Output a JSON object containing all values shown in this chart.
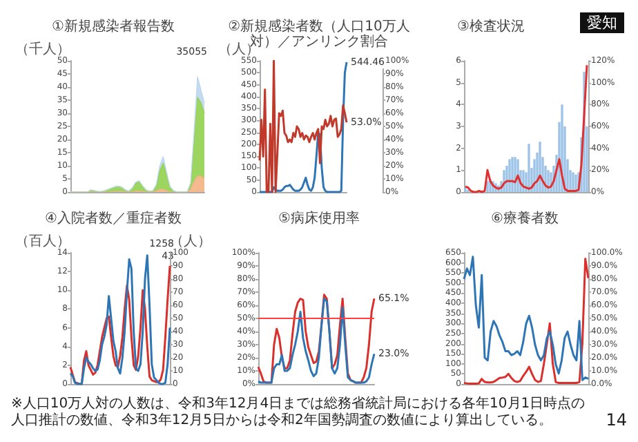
{
  "chart_data": [
    {
      "type": "area",
      "title": "①新規感染者報告数",
      "ylabel": "（千人）",
      "stacked": true,
      "categories": [
        null,
        null,
        null,
        null,
        null,
        null,
        null,
        null,
        null,
        null,
        null,
        null,
        null,
        null,
        null,
        null,
        null,
        null,
        null,
        null,
        null,
        null,
        null,
        null,
        null,
        null,
        null,
        null,
        null,
        null,
        null,
        null,
        null,
        null,
        null,
        null,
        null,
        null,
        null,
        null
      ],
      "ylim": [
        0,
        50
      ],
      "yticks": [
        0,
        5,
        10,
        15,
        20,
        25,
        30,
        35,
        40,
        45,
        50
      ],
      "annotations": [
        "35055"
      ],
      "series": [
        {
          "color": "#f4b183",
          "values": [
            0,
            0,
            0,
            0,
            0,
            0,
            0,
            0,
            0,
            0,
            0,
            0,
            0,
            0.2,
            0.2,
            0.2,
            0,
            0,
            0,
            0.3,
            0.3,
            0.2,
            0,
            0,
            0,
            0.3,
            1,
            1,
            0.5,
            0,
            0,
            0,
            0,
            0,
            0,
            1,
            4,
            6,
            6,
            5
          ]
        },
        {
          "color": "#92d050",
          "values": [
            0,
            0,
            0,
            0,
            0,
            0,
            0.8,
            0.5,
            0.2,
            0.2,
            0.5,
            1,
            1.5,
            1.8,
            2,
            1.6,
            0.8,
            0.3,
            1.5,
            3,
            3.5,
            2,
            0.8,
            0.3,
            0.5,
            2,
            7,
            10,
            6,
            2,
            0.5,
            0,
            0,
            0,
            0,
            2,
            15,
            30,
            28,
            25
          ]
        },
        {
          "color": "#bdd7ee",
          "values": [
            0,
            0,
            0,
            0,
            0,
            0,
            0,
            0,
            0,
            0,
            0,
            0,
            0,
            0,
            0,
            0,
            0,
            0,
            0,
            0.5,
            0.5,
            0.2,
            0,
            0,
            0,
            0.5,
            2,
            2.5,
            1,
            0,
            0,
            0,
            0,
            0,
            0,
            0.5,
            4,
            8,
            5,
            4
          ]
        }
      ]
    },
    {
      "type": "line",
      "title": "②新規感染者数（人口10万人対）／アンリンク割合",
      "ylabel": "（人）",
      "categories": [
        null,
        null,
        null,
        null,
        null,
        null,
        null,
        null,
        null,
        null,
        null,
        null,
        null,
        null,
        null,
        null,
        null,
        null,
        null,
        null,
        null,
        null,
        null,
        null,
        null,
        null,
        null,
        null,
        null,
        null,
        null,
        null,
        null,
        null,
        null,
        null,
        null,
        null,
        null,
        null,
        null,
        null,
        null,
        null,
        null,
        null,
        null,
        null,
        null,
        null
      ],
      "ylim": [
        0,
        550
      ],
      "yticks": [
        0,
        50,
        100,
        150,
        200,
        250,
        300,
        350,
        400,
        450,
        500,
        550
      ],
      "y2lim": [
        0,
        100
      ],
      "y2ticks": [
        {
          "value": 0,
          "label": "0%"
        },
        {
          "value": 10,
          "label": "10%"
        },
        {
          "value": 20,
          "label": "20%"
        },
        {
          "value": 30,
          "label": "30%"
        },
        {
          "value": 40,
          "label": "40%"
        },
        {
          "value": 50,
          "label": "50%"
        },
        {
          "value": 60,
          "label": "60%"
        },
        {
          "value": 70,
          "label": "70%"
        },
        {
          "value": 80,
          "label": "80%"
        },
        {
          "value": 90,
          "label": "90%"
        },
        {
          "value": 100,
          "label": "100%"
        }
      ],
      "series": [
        {
          "color": "#2e75b6",
          "values": [
            0,
            0,
            0,
            0,
            0,
            0,
            0,
            0,
            20,
            10,
            5,
            5,
            5,
            10,
            20,
            25,
            25,
            30,
            20,
            10,
            5,
            5,
            5,
            10,
            20,
            40,
            60,
            30,
            10,
            5,
            20,
            60,
            150,
            250,
            240,
            100,
            20,
            5,
            0,
            0,
            0,
            0,
            0,
            0,
            0,
            0,
            5,
            300,
            500,
            544.46
          ],
          "value_labels": [
            null,
            null,
            null,
            null,
            null,
            null,
            null,
            null,
            null,
            null,
            null,
            null,
            null,
            null,
            null,
            null,
            null,
            null,
            null,
            null,
            null,
            null,
            null,
            null,
            null,
            null,
            null,
            null,
            null,
            null,
            null,
            null,
            null,
            null,
            null,
            null,
            null,
            null,
            null,
            null,
            null,
            null,
            null,
            null,
            null,
            null,
            null,
            null,
            null,
            "544.46"
          ]
        },
        {
          "color": "#c0392b",
          "axis": "y2",
          "values": [
            24,
            55,
            27,
            78,
            0,
            0,
            52,
            0,
            100,
            0,
            30,
            60,
            58,
            62,
            45,
            43,
            38,
            40,
            38,
            45,
            42,
            50,
            48,
            42,
            45,
            40,
            43,
            42,
            38,
            42,
            45,
            40,
            45,
            48,
            22,
            50,
            48,
            55,
            50,
            52,
            58,
            50,
            55,
            56,
            42,
            44,
            48,
            66,
            60,
            53
          ],
          "value_labels": [
            null,
            null,
            null,
            null,
            null,
            null,
            null,
            null,
            null,
            null,
            null,
            null,
            null,
            null,
            null,
            null,
            null,
            null,
            null,
            null,
            null,
            null,
            null,
            null,
            null,
            null,
            null,
            null,
            null,
            null,
            null,
            null,
            null,
            null,
            null,
            null,
            null,
            null,
            null,
            null,
            null,
            null,
            null,
            null,
            null,
            null,
            null,
            null,
            null,
            "53.0%"
          ]
        }
      ]
    },
    {
      "type": "bar",
      "title": "③検査状況",
      "annotations": [
        "愛知"
      ],
      "categories": [
        null,
        null,
        null,
        null,
        null,
        null,
        null,
        null,
        null,
        null,
        null,
        null,
        null,
        null,
        null,
        null,
        null,
        null,
        null,
        null,
        null,
        null,
        null,
        null,
        null,
        null,
        null,
        null,
        null,
        null,
        null,
        null,
        null,
        null,
        null,
        null,
        null,
        null,
        null,
        null,
        null,
        null,
        null,
        null,
        null
      ],
      "ylim": [
        0,
        6
      ],
      "yticks": [
        0,
        1,
        2,
        3,
        4,
        5,
        6
      ],
      "y2lim": [
        0,
        120
      ],
      "y2ticks": [
        {
          "value": 0,
          "label": "0%"
        },
        {
          "value": 20,
          "label": "20%"
        },
        {
          "value": 40,
          "label": "40%"
        },
        {
          "value": 60,
          "label": "60%"
        },
        {
          "value": 80,
          "label": "80%"
        },
        {
          "value": 100,
          "label": "100%"
        },
        {
          "value": 120,
          "label": "120%"
        }
      ],
      "series": [
        {
          "color": "#9dc3e6",
          "values": [
            0.2,
            0.1,
            0,
            0,
            0,
            0,
            0,
            0,
            0.5,
            0.6,
            0.5,
            0.4,
            0.3,
            0.5,
            1,
            1.2,
            1.5,
            1.6,
            1.6,
            1.5,
            1,
            1,
            0.9,
            2.2,
            1.1,
            1.5,
            1.8,
            2.3,
            1.6,
            1.2,
            1,
            0.9,
            1.2,
            1.7,
            3.2,
            4,
            3,
            1.5,
            1,
            0.9,
            0.8,
            0.9,
            2.5,
            5.5,
            3
          ]
        },
        {
          "type": "line",
          "axis": "y2",
          "color": "#e03030",
          "values": [
            5,
            4,
            1,
            0,
            0,
            1,
            0,
            1,
            20,
            10,
            6,
            4,
            3,
            4,
            8,
            10,
            10,
            10,
            9,
            15,
            8,
            5,
            4,
            3,
            4,
            8,
            10,
            15,
            10,
            6,
            4,
            5,
            10,
            20,
            30,
            15,
            3,
            1,
            1,
            1,
            1,
            2,
            25,
            70,
            116
          ]
        }
      ]
    },
    {
      "type": "line",
      "title": "④入院者数／重症者数",
      "ylabel": "（百人）",
      "y2label": "（人）",
      "annotations": [
        "1258",
        "43"
      ],
      "categories": [
        null,
        null,
        null,
        null,
        null,
        null,
        null,
        null,
        null,
        null,
        null,
        null,
        null,
        null,
        null,
        null,
        null,
        null,
        null,
        null,
        null,
        null,
        null,
        null,
        null,
        null,
        null,
        null,
        null,
        null,
        null,
        null,
        null,
        null,
        null,
        null,
        null,
        null,
        null,
        null,
        null,
        null,
        null,
        null,
        null
      ],
      "ylim": [
        0,
        14
      ],
      "yticks": [
        0,
        2,
        4,
        6,
        8,
        10,
        12,
        14
      ],
      "y2lim": [
        0,
        100
      ],
      "y2ticks": [
        0,
        10,
        20,
        30,
        40,
        50,
        60,
        70,
        80,
        90,
        100
      ],
      "series": [
        {
          "color": "#d9302c",
          "values": [
            1.8,
            1,
            0.2,
            0.1,
            0,
            0,
            2.5,
            3.5,
            2,
            1.5,
            1,
            1.2,
            2,
            3.5,
            5,
            6,
            7,
            7.2,
            5,
            3,
            2,
            1.8,
            3,
            5,
            8,
            10.5,
            9,
            5,
            2,
            1.5,
            3,
            6,
            10,
            8,
            4,
            0.8,
            0.4,
            0.3,
            0.2,
            0.2,
            0.5,
            1.5,
            5,
            9,
            12.6
          ]
        },
        {
          "color": "#2e75b6",
          "axis": "y2",
          "values": [
            8,
            6,
            1,
            0,
            0,
            0,
            12,
            20,
            17,
            15,
            12,
            10,
            11,
            18,
            30,
            36,
            45,
            67,
            50,
            33,
            25,
            12,
            8,
            20,
            40,
            70,
            95,
            88,
            40,
            12,
            10,
            15,
            40,
            80,
            98,
            60,
            15,
            5,
            3,
            1,
            0,
            0,
            1,
            15,
            43
          ]
        }
      ]
    },
    {
      "type": "line",
      "title": "⑤病床使用率",
      "categories": [
        null,
        null,
        null,
        null,
        null,
        null,
        null,
        null,
        null,
        null,
        null,
        null,
        null,
        null,
        null,
        null,
        null,
        null,
        null,
        null,
        null,
        null,
        null,
        null,
        null,
        null,
        null,
        null,
        null,
        null,
        null,
        null,
        null,
        null,
        null,
        null,
        null,
        null,
        null,
        null,
        null,
        null,
        null,
        null,
        null
      ],
      "ylim": [
        0,
        100
      ],
      "yticks": [
        {
          "value": 0,
          "label": "0%"
        },
        {
          "value": 10,
          "label": "10%"
        },
        {
          "value": 20,
          "label": "20%"
        },
        {
          "value": 30,
          "label": "30%"
        },
        {
          "value": 40,
          "label": "40%"
        },
        {
          "value": 50,
          "label": "50%"
        },
        {
          "value": 60,
          "label": "60%"
        },
        {
          "value": 70,
          "label": "70%"
        },
        {
          "value": 80,
          "label": "80%"
        },
        {
          "value": 90,
          "label": "90%"
        },
        {
          "value": 100,
          "label": "100%"
        }
      ],
      "ref_lines": [
        {
          "axis": "y",
          "value": 50,
          "color": "#ff4040"
        }
      ],
      "series": [
        {
          "color": "#d9302c",
          "values": [
            13,
            8,
            2,
            1,
            1,
            1,
            30,
            42,
            35,
            20,
            12,
            12,
            18,
            38,
            55,
            62,
            65,
            64,
            40,
            28,
            22,
            16,
            17,
            25,
            45,
            68,
            65,
            40,
            12,
            15,
            22,
            45,
            65,
            35,
            8,
            3,
            2,
            1,
            1,
            1,
            5,
            12,
            30,
            55,
            65.1
          ],
          "value_labels": [
            null,
            null,
            null,
            null,
            null,
            null,
            null,
            null,
            null,
            null,
            null,
            null,
            null,
            null,
            null,
            null,
            null,
            null,
            null,
            null,
            null,
            null,
            null,
            null,
            null,
            null,
            null,
            null,
            null,
            null,
            null,
            null,
            null,
            null,
            null,
            null,
            null,
            null,
            null,
            null,
            null,
            null,
            null,
            null,
            "65.1%"
          ]
        },
        {
          "color": "#2e75b6",
          "values": [
            2,
            1,
            1,
            1,
            1,
            1,
            12,
            15,
            15,
            22,
            10,
            10,
            12,
            22,
            30,
            40,
            55,
            35,
            25,
            18,
            10,
            6,
            8,
            20,
            45,
            65,
            63,
            40,
            12,
            8,
            12,
            30,
            58,
            30,
            5,
            3,
            2,
            1,
            1,
            1,
            1,
            2,
            5,
            15,
            23
          ],
          "value_labels": [
            null,
            null,
            null,
            null,
            null,
            null,
            null,
            null,
            null,
            null,
            null,
            null,
            null,
            null,
            null,
            null,
            null,
            null,
            null,
            null,
            null,
            null,
            null,
            null,
            null,
            null,
            null,
            null,
            null,
            null,
            null,
            null,
            null,
            null,
            null,
            null,
            null,
            null,
            null,
            null,
            null,
            null,
            null,
            null,
            "23.0%"
          ]
        }
      ]
    },
    {
      "type": "line",
      "title": "⑥療養者数",
      "annotations": [
        "※人口10万人対の人数は、令和3年12月4日までは総務省統計局における各年10月1日時点の人口推計の数値、令和3年12月5日からは令和2年国勢調査の数値により算出している。",
        "14"
      ],
      "categories": [
        null,
        null,
        null,
        null,
        null,
        null,
        null,
        null,
        null,
        null,
        null,
        null,
        null,
        null,
        null,
        null,
        null,
        null,
        null,
        null,
        null,
        null,
        null,
        null,
        null,
        null,
        null,
        null,
        null,
        null,
        null,
        null,
        null,
        null,
        null,
        null,
        null,
        null,
        null,
        null,
        null,
        null,
        null
      ],
      "ylim": [
        0,
        650
      ],
      "yticks": [
        0,
        50,
        100,
        150,
        200,
        250,
        300,
        350,
        400,
        450,
        500,
        550,
        600,
        650
      ],
      "y2lim": [
        0,
        100
      ],
      "y2ticks": [
        {
          "value": 0,
          "label": "0.0%"
        },
        {
          "value": 10,
          "label": "10.0%"
        },
        {
          "value": 20,
          "label": "20.0%"
        },
        {
          "value": 30,
          "label": "30.0%"
        },
        {
          "value": 40,
          "label": "40.0%"
        },
        {
          "value": 50,
          "label": "50.0%"
        },
        {
          "value": 60,
          "label": "60.0%"
        },
        {
          "value": 70,
          "label": "70.0%"
        },
        {
          "value": 80,
          "label": "80.0%"
        },
        {
          "value": 90,
          "label": "90.0%"
        },
        {
          "value": 100,
          "label": "100.0%"
        }
      ],
      "series": [
        {
          "color": "#d9302c",
          "values": [
            5,
            3,
            2,
            2,
            2,
            3,
            25,
            10,
            8,
            8,
            10,
            20,
            30,
            32,
            35,
            50,
            30,
            15,
            10,
            15,
            40,
            60,
            85,
            50,
            20,
            10,
            15,
            100,
            200,
            300,
            100,
            10,
            5,
            5,
            5,
            5,
            5,
            5,
            5,
            10,
            200,
            620,
            524
          ]
        },
        {
          "color": "#2e75b6",
          "axis": "y2",
          "values": [
            80,
            88,
            83,
            97,
            60,
            43,
            83,
            20,
            18,
            40,
            48,
            44,
            37,
            32,
            25,
            25,
            22,
            23,
            25,
            22,
            32,
            46,
            52,
            43,
            30,
            22,
            18,
            22,
            35,
            40,
            30,
            15,
            8,
            18,
            35,
            40,
            30,
            22,
            18,
            48,
            3,
            5,
            4
          ]
        }
      ]
    }
  ]
}
